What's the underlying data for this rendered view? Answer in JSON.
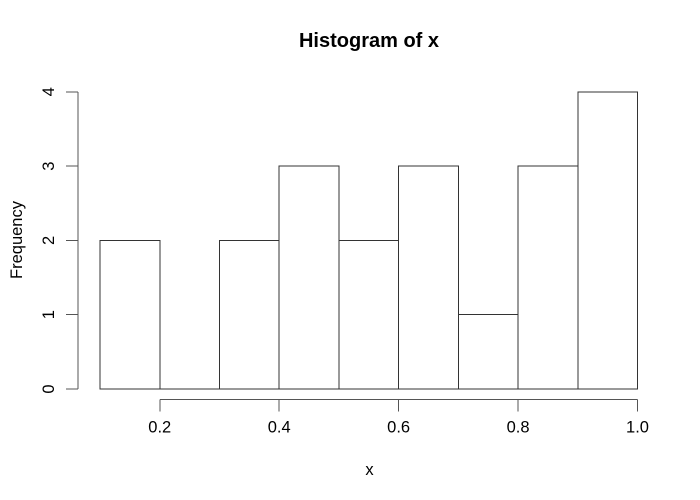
{
  "figure": {
    "title": "Histogram of x",
    "xlabel": "x",
    "ylabel": "Frequency"
  },
  "colors": {
    "background": "#ffffff",
    "text": "#000000",
    "axis_line": "#555555",
    "bar_border": "#333333",
    "bar_fill": "#ffffff"
  },
  "chart_data": {
    "type": "bar",
    "subtype": "histogram",
    "title": "Histogram of x",
    "xlabel": "x",
    "ylabel": "Frequency",
    "bin_breaks": [
      0.1,
      0.2,
      0.3,
      0.4,
      0.5,
      0.6,
      0.7,
      0.8,
      0.9,
      1.0
    ],
    "counts": [
      2,
      0,
      2,
      3,
      2,
      3,
      1,
      3,
      4
    ],
    "x_ticks": [
      0.2,
      0.4,
      0.6,
      0.8,
      1.0
    ],
    "x_tick_labels": [
      "0.2",
      "0.4",
      "0.6",
      "0.8",
      "1.0"
    ],
    "y_ticks": [
      0,
      1,
      2,
      3,
      4
    ],
    "y_tick_labels": [
      "0",
      "1",
      "2",
      "3",
      "4"
    ],
    "xlim": [
      0.1,
      1.0
    ],
    "ylim": [
      0,
      4
    ],
    "grid": false,
    "legend": null,
    "bar_fill": "#ffffff",
    "bar_border": "#000000",
    "y_tick_label_rotation": -90
  }
}
